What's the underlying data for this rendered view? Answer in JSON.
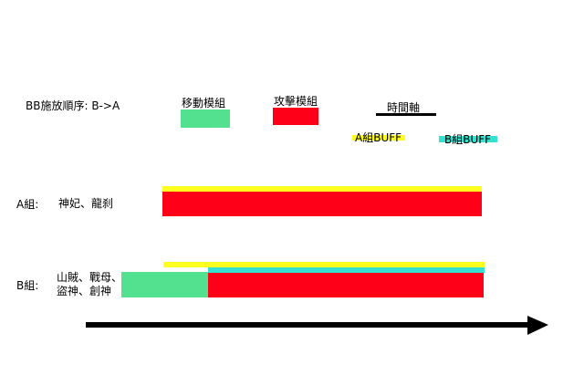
{
  "header": {
    "order_label": "BB施放順序:  B->A"
  },
  "legend": {
    "move_module": {
      "label": "移動模組",
      "color": "#53e08f"
    },
    "attack_module": {
      "label": "攻擊模組",
      "color": "#ff0019"
    },
    "timeline": {
      "label": "時間軸",
      "color": "#000000"
    },
    "a_buff": {
      "label": "A組BUFF",
      "color": "#ffff1f"
    },
    "b_buff": {
      "label": "B組BUFF",
      "color": "#36e0d0"
    }
  },
  "groups": {
    "a": {
      "label": "A組:",
      "members": [
        "神妃、龍刹"
      ]
    },
    "b": {
      "label": "B組:",
      "members": [
        "山賊、戰母、",
        "盜神、創神"
      ]
    }
  },
  "icons": {
    "time_arrow": "arrow-right-icon"
  }
}
